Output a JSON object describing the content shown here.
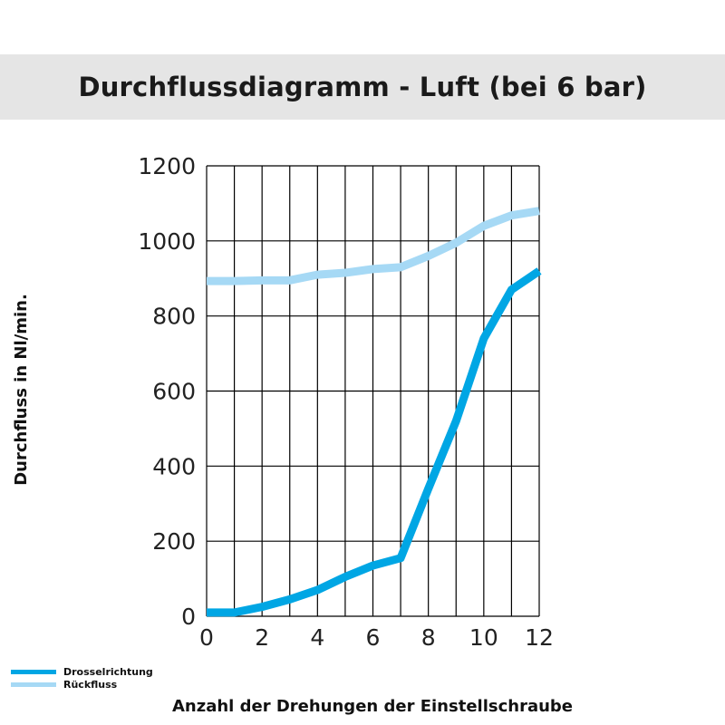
{
  "title": "Durchflussdiagramm - Luft (bei 6 bar)",
  "chart_data": {
    "type": "line",
    "title": "Durchflussdiagramm - Luft (bei 6 bar)",
    "xlabel": "Anzahl der Drehungen der Einstellschraube",
    "ylabel": "Durchfluss in Nl/min.",
    "xlim": [
      0,
      12
    ],
    "ylim": [
      0,
      1200
    ],
    "xticks": [
      0,
      2,
      4,
      6,
      8,
      10,
      12
    ],
    "yticks": [
      0,
      200,
      400,
      600,
      800,
      1000,
      1200
    ],
    "grid": true,
    "legend_position": "bottom-left",
    "x": [
      0,
      1,
      2,
      3,
      4,
      5,
      6,
      7,
      8,
      9,
      10,
      11,
      12
    ],
    "series": [
      {
        "name": "Drosselrichtung",
        "color": "#00a6e4",
        "values": [
          10,
          10,
          25,
          45,
          70,
          105,
          135,
          155,
          340,
          520,
          740,
          870,
          920
        ]
      },
      {
        "name": "Rückfluss",
        "color": "#a6d9f5",
        "values": [
          893,
          893,
          895,
          895,
          910,
          915,
          925,
          930,
          960,
          995,
          1040,
          1068,
          1080
        ]
      }
    ]
  }
}
